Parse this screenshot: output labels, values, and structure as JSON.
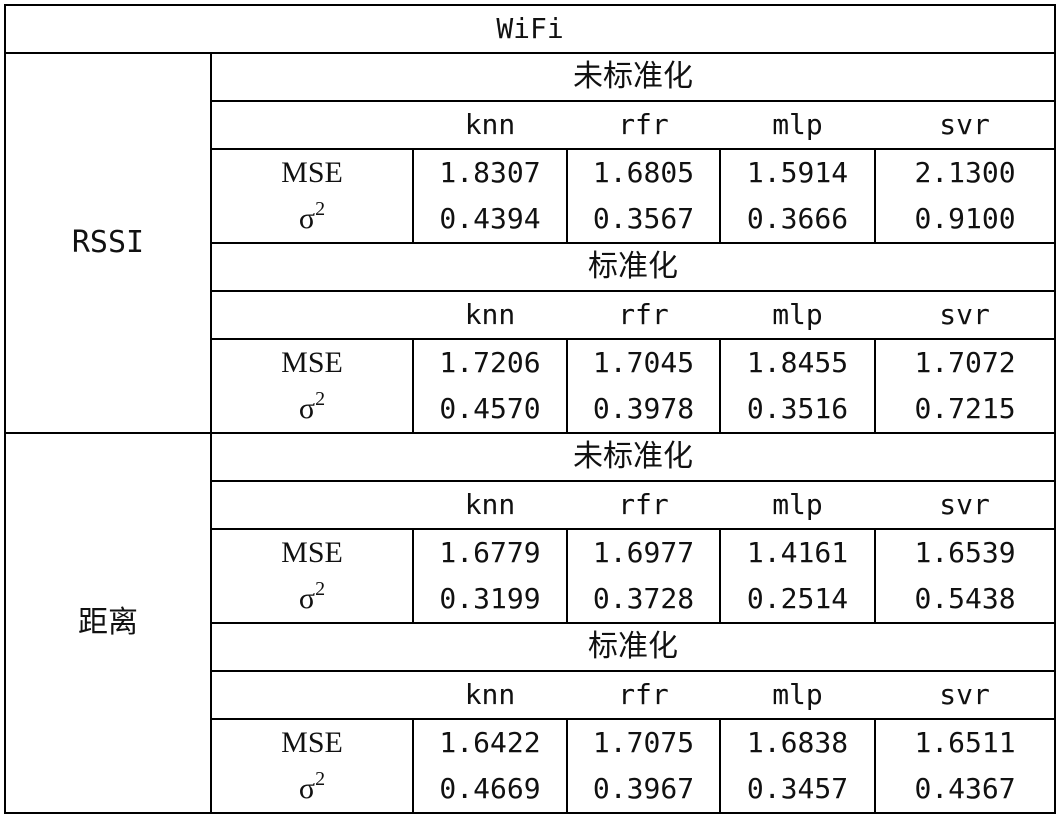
{
  "title": "WiFi",
  "sigma_label": "σ",
  "sigma_exp": "2",
  "mse_label": "MSE",
  "columns": [
    "knn",
    "rfr",
    "mlp",
    "svr"
  ],
  "groups": [
    {
      "name": "RSSI",
      "blocks": [
        {
          "label": "未标准化",
          "mse": [
            "1.8307",
            "1.6805",
            "1.5914",
            "2.1300"
          ],
          "var": [
            "0.4394",
            "0.3567",
            "0.3666",
            "0.9100"
          ]
        },
        {
          "label": "标准化",
          "mse": [
            "1.7206",
            "1.7045",
            "1.8455",
            "1.7072"
          ],
          "var": [
            "0.4570",
            "0.3978",
            "0.3516",
            "0.7215"
          ]
        }
      ]
    },
    {
      "name": "距离",
      "blocks": [
        {
          "label": "未标准化",
          "mse": [
            "1.6779",
            "1.6977",
            "1.4161",
            "1.6539"
          ],
          "var": [
            "0.3199",
            "0.3728",
            "0.2514",
            "0.5438"
          ]
        },
        {
          "label": "标准化",
          "mse": [
            "1.6422",
            "1.7075",
            "1.6838",
            "1.6511"
          ],
          "var": [
            "0.4669",
            "0.3967",
            "0.3457",
            "0.4367"
          ]
        }
      ]
    }
  ]
}
